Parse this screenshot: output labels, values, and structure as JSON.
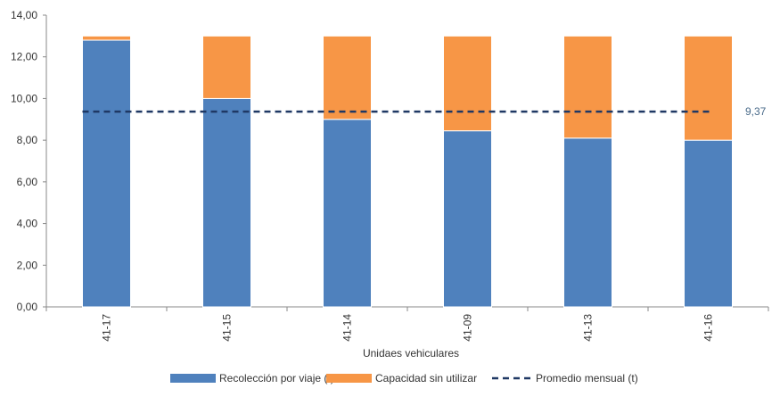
{
  "chart_data": {
    "type": "bar",
    "stacked": true,
    "categories": [
      "41-17",
      "41-15",
      "41-14",
      "41-09",
      "41-13",
      "41-16"
    ],
    "series": [
      {
        "name": "Recolección por viaje (t)",
        "values": [
          12.8,
          10.0,
          9.0,
          8.45,
          8.1,
          8.0
        ]
      },
      {
        "name": "Capacidad sin utilizar",
        "values": [
          0.2,
          3.0,
          4.0,
          4.55,
          4.9,
          5.0
        ]
      }
    ],
    "average": {
      "name": "Promedio mensual (t)",
      "value": 9.37,
      "label": "9,37"
    },
    "xlabel": "Unidaes vehiculares",
    "ylabel": "",
    "ylim": [
      0,
      14
    ],
    "yticks": [
      "0,00",
      "2,00",
      "4,00",
      "6,00",
      "8,00",
      "10,00",
      "12,00",
      "14,00"
    ],
    "grid": false,
    "legend_position": "bottom",
    "colors": {
      "recoleccion": "#4f81bd",
      "capacidad": "#f79646",
      "promedio": "#1f3864",
      "axis": "#888888"
    }
  }
}
